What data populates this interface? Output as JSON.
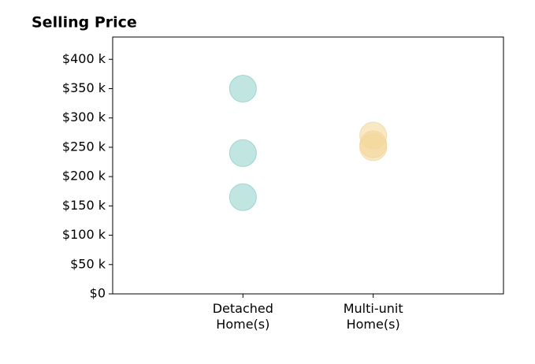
{
  "chart_data": {
    "type": "strip",
    "title": "Selling Price",
    "categories": [
      "Detached\nHome(s)",
      "Multi-unit\nHome(s)"
    ],
    "values": [
      [
        350,
        240,
        165
      ],
      [
        270,
        255,
        250
      ]
    ],
    "colors": [
      "#8ecfc9",
      "#f2d598"
    ],
    "ylim": [
      0,
      438
    ],
    "yticks": [
      {
        "value": 0,
        "label": "$0"
      },
      {
        "value": 50,
        "label": "$50 k"
      },
      {
        "value": 100,
        "label": "$100 k"
      },
      {
        "value": 150,
        "label": "$150 k"
      },
      {
        "value": 200,
        "label": "$200 k"
      },
      {
        "value": 250,
        "label": "$250 k"
      },
      {
        "value": 300,
        "label": "$300 k"
      },
      {
        "value": 350,
        "label": "$350 k"
      },
      {
        "value": 400,
        "label": "$400 k"
      }
    ]
  }
}
